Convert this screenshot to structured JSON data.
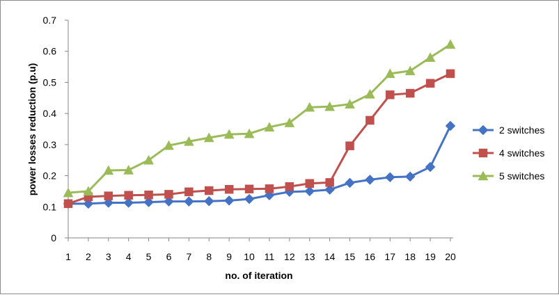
{
  "chart_data": {
    "type": "line",
    "title": "",
    "xlabel": "no. of iteration",
    "ylabel": "power losses reduction (p.u)",
    "x": [
      1,
      2,
      3,
      4,
      5,
      6,
      7,
      8,
      9,
      10,
      11,
      12,
      13,
      14,
      15,
      16,
      17,
      18,
      19,
      20
    ],
    "ylim": [
      0,
      0.7
    ],
    "yticks": [
      "0",
      "0.1",
      "0.2",
      "0.3",
      "0.4",
      "0.5",
      "0.6",
      "0.7"
    ],
    "grid": false,
    "legend_position": "right",
    "series": [
      {
        "name": "2 switches",
        "color": "#4472c4",
        "marker": "diamond",
        "values": [
          0.11,
          0.11,
          0.113,
          0.113,
          0.115,
          0.117,
          0.117,
          0.118,
          0.12,
          0.125,
          0.137,
          0.148,
          0.15,
          0.155,
          0.177,
          0.187,
          0.195,
          0.197,
          0.228,
          0.36
        ]
      },
      {
        "name": "4 switches",
        "color": "#c0504d",
        "marker": "square",
        "values": [
          0.11,
          0.132,
          0.135,
          0.137,
          0.138,
          0.14,
          0.148,
          0.152,
          0.156,
          0.157,
          0.158,
          0.165,
          0.175,
          0.178,
          0.296,
          0.378,
          0.46,
          0.465,
          0.497,
          0.528
        ]
      },
      {
        "name": "5 switches",
        "color": "#9bbb59",
        "marker": "triangle",
        "values": [
          0.145,
          0.15,
          0.217,
          0.218,
          0.25,
          0.297,
          0.31,
          0.322,
          0.333,
          0.335,
          0.356,
          0.37,
          0.42,
          0.422,
          0.43,
          0.462,
          0.528,
          0.537,
          0.58,
          0.622
        ]
      }
    ]
  }
}
